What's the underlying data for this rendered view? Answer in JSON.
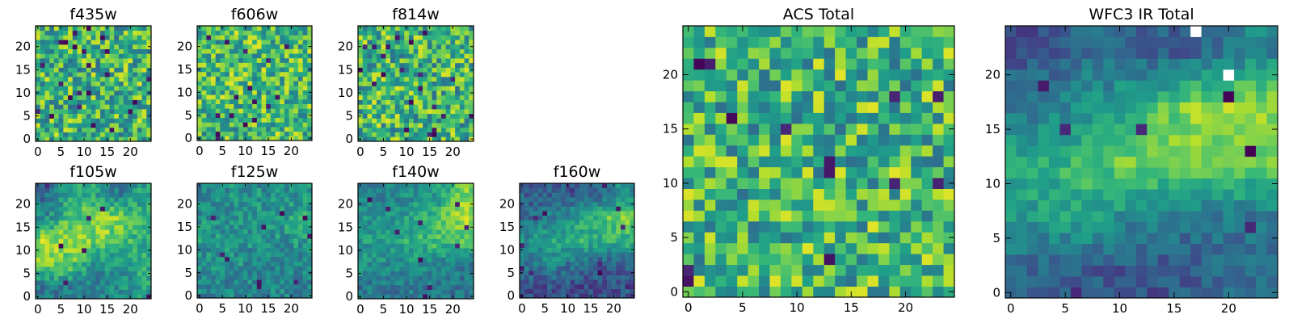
{
  "chart_data": [
    {
      "type": "heatmap",
      "title": "f435w",
      "xlim": [
        -0.5,
        24.5
      ],
      "ylim": [
        -0.5,
        24.5
      ],
      "xticks": [
        0,
        5,
        10,
        15,
        20
      ],
      "yticks": [
        0,
        5,
        10,
        15,
        20
      ],
      "colormap": "viridis",
      "coarse_levels": [
        [
          0.65,
          0.65,
          0.65,
          0.65,
          0.65
        ],
        [
          0.65,
          0.65,
          0.65,
          0.65,
          0.65
        ],
        [
          0.65,
          0.65,
          0.65,
          0.65,
          0.65
        ],
        [
          0.65,
          0.65,
          0.65,
          0.65,
          0.65
        ],
        [
          0.65,
          0.65,
          0.65,
          0.65,
          0.65
        ]
      ],
      "noise": 0.3,
      "outlier_rate": 0.025
    },
    {
      "type": "heatmap",
      "title": "f606w",
      "xlim": [
        -0.5,
        24.5
      ],
      "ylim": [
        -0.5,
        24.5
      ],
      "xticks": [
        0,
        5,
        10,
        15,
        20
      ],
      "yticks": [
        0,
        5,
        10,
        15,
        20
      ],
      "colormap": "viridis",
      "coarse_levels": [
        [
          0.68,
          0.68,
          0.68,
          0.68,
          0.68
        ],
        [
          0.68,
          0.68,
          0.68,
          0.68,
          0.68
        ],
        [
          0.68,
          0.68,
          0.68,
          0.68,
          0.68
        ],
        [
          0.68,
          0.68,
          0.68,
          0.68,
          0.68
        ],
        [
          0.68,
          0.68,
          0.68,
          0.68,
          0.68
        ]
      ],
      "noise": 0.28,
      "outlier_rate": 0.02
    },
    {
      "type": "heatmap",
      "title": "f814w",
      "xlim": [
        -0.5,
        24.5
      ],
      "ylim": [
        -0.5,
        24.5
      ],
      "xticks": [
        0,
        5,
        10,
        15,
        20
      ],
      "yticks": [
        0,
        5,
        10,
        15,
        20
      ],
      "colormap": "viridis",
      "coarse_levels": [
        [
          0.66,
          0.66,
          0.66,
          0.66,
          0.66
        ],
        [
          0.66,
          0.66,
          0.66,
          0.66,
          0.66
        ],
        [
          0.66,
          0.66,
          0.66,
          0.66,
          0.66
        ],
        [
          0.66,
          0.66,
          0.66,
          0.66,
          0.66
        ],
        [
          0.66,
          0.66,
          0.66,
          0.66,
          0.66
        ]
      ],
      "noise": 0.3,
      "outlier_rate": 0.025
    },
    {
      "type": "heatmap",
      "title": "f105w",
      "xlim": [
        -0.5,
        24.5
      ],
      "ylim": [
        -0.5,
        24.5
      ],
      "xticks": [
        0,
        5,
        10,
        15,
        20
      ],
      "yticks": [
        0,
        5,
        10,
        15,
        20
      ],
      "colormap": "viridis",
      "coarse_levels": [
        [
          0.4,
          0.4,
          0.45,
          0.5,
          0.55
        ],
        [
          0.8,
          0.75,
          0.5,
          0.5,
          0.6
        ],
        [
          0.85,
          0.85,
          0.8,
          0.75,
          0.6
        ],
        [
          0.5,
          0.7,
          0.8,
          0.85,
          0.65
        ],
        [
          0.35,
          0.6,
          0.6,
          0.4,
          0.55
        ]
      ],
      "noise": 0.14,
      "outlier_rate": 0.012
    },
    {
      "type": "heatmap",
      "title": "f125w",
      "xlim": [
        -0.5,
        24.5
      ],
      "ylim": [
        -0.5,
        24.5
      ],
      "xticks": [
        0,
        5,
        10,
        15,
        20
      ],
      "yticks": [
        0,
        5,
        10,
        15,
        20
      ],
      "colormap": "viridis",
      "coarse_levels": [
        [
          0.45,
          0.45,
          0.45,
          0.45,
          0.45
        ],
        [
          0.5,
          0.5,
          0.48,
          0.45,
          0.45
        ],
        [
          0.55,
          0.5,
          0.5,
          0.5,
          0.55
        ],
        [
          0.5,
          0.5,
          0.5,
          0.55,
          0.6
        ],
        [
          0.45,
          0.5,
          0.5,
          0.5,
          0.5
        ]
      ],
      "noise": 0.14,
      "outlier_rate": 0.015
    },
    {
      "type": "heatmap",
      "title": "f140w",
      "xlim": [
        -0.5,
        24.5
      ],
      "ylim": [
        -0.5,
        24.5
      ],
      "xticks": [
        0,
        5,
        10,
        15,
        20
      ],
      "yticks": [
        0,
        5,
        10,
        15,
        20
      ],
      "colormap": "viridis",
      "coarse_levels": [
        [
          0.4,
          0.4,
          0.4,
          0.4,
          0.4
        ],
        [
          0.5,
          0.5,
          0.5,
          0.45,
          0.4
        ],
        [
          0.55,
          0.55,
          0.65,
          0.7,
          0.7
        ],
        [
          0.5,
          0.5,
          0.6,
          0.7,
          0.9
        ],
        [
          0.45,
          0.45,
          0.5,
          0.55,
          0.8
        ]
      ],
      "noise": 0.12,
      "outlier_rate": 0.01
    },
    {
      "type": "heatmap",
      "title": "f160w",
      "xlim": [
        -0.5,
        24.5
      ],
      "ylim": [
        -0.5,
        24.5
      ],
      "xticks": [
        0,
        5,
        10,
        15,
        20
      ],
      "yticks": [
        0,
        5,
        10,
        15,
        20
      ],
      "colormap": "viridis",
      "coarse_levels": [
        [
          0.25,
          0.25,
          0.25,
          0.25,
          0.25
        ],
        [
          0.4,
          0.45,
          0.35,
          0.3,
          0.3
        ],
        [
          0.5,
          0.6,
          0.65,
          0.6,
          0.65
        ],
        [
          0.35,
          0.45,
          0.55,
          0.7,
          0.8
        ],
        [
          0.3,
          0.3,
          0.25,
          0.35,
          0.5
        ]
      ],
      "noise": 0.12,
      "outlier_rate": 0.012
    },
    {
      "type": "heatmap",
      "title": "ACS Total",
      "xlim": [
        -0.5,
        24.5
      ],
      "ylim": [
        -0.5,
        24.5
      ],
      "xticks": [
        0,
        5,
        10,
        15,
        20
      ],
      "yticks": [
        0,
        5,
        10,
        15,
        20
      ],
      "colormap": "viridis",
      "coarse_levels": [
        [
          0.66,
          0.66,
          0.66,
          0.66,
          0.66
        ],
        [
          0.66,
          0.66,
          0.66,
          0.66,
          0.66
        ],
        [
          0.66,
          0.66,
          0.66,
          0.66,
          0.66
        ],
        [
          0.66,
          0.66,
          0.66,
          0.66,
          0.66
        ],
        [
          0.66,
          0.66,
          0.66,
          0.66,
          0.66
        ]
      ],
      "noise": 0.3,
      "outlier_rate": 0.015
    },
    {
      "type": "heatmap",
      "title": "WFC3 IR Total",
      "xlim": [
        -0.5,
        24.5
      ],
      "ylim": [
        -0.5,
        24.5
      ],
      "xticks": [
        0,
        5,
        10,
        15,
        20
      ],
      "yticks": [
        0,
        5,
        10,
        15,
        20
      ],
      "colormap": "viridis",
      "coarse_levels": [
        [
          0.3,
          0.3,
          0.25,
          0.3,
          0.35
        ],
        [
          0.55,
          0.6,
          0.45,
          0.4,
          0.4
        ],
        [
          0.6,
          0.7,
          0.8,
          0.8,
          0.75
        ],
        [
          0.4,
          0.5,
          0.65,
          0.85,
          0.85
        ],
        [
          0.25,
          0.35,
          0.3,
          0.3,
          0.45
        ]
      ],
      "noise": 0.1,
      "outlier_rate": 0.01,
      "missing_cells": [
        [
          17,
          24
        ],
        [
          20,
          20
        ]
      ]
    }
  ]
}
